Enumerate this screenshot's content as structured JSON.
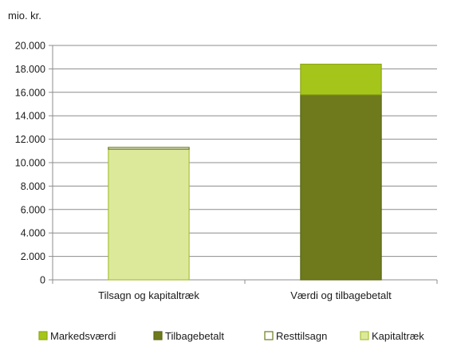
{
  "chart_data": {
    "type": "bar",
    "stacked": true,
    "unit_label": "mio. kr.",
    "categories": [
      "Tilsagn og kapitaltræk",
      "Værdi og tilbagebetalt"
    ],
    "series": [
      {
        "name": "Kapitaltræk",
        "values": [
          11150,
          0
        ],
        "color": "#dde99a",
        "stroke": "#a6c23a"
      },
      {
        "name": "Resttilsagn",
        "values": [
          150,
          0
        ],
        "color": "#ffffff",
        "stroke": "#6e7a1c"
      },
      {
        "name": "Tilbagebetalt",
        "values": [
          0,
          15800
        ],
        "color": "#6e7a1c",
        "stroke": "#5d6816"
      },
      {
        "name": "Markedsværdi",
        "values": [
          0,
          2600
        ],
        "color": "#a6c51a",
        "stroke": "#8ea816"
      }
    ],
    "ylim": [
      0,
      20000
    ],
    "yticks": [
      0,
      2000,
      4000,
      6000,
      8000,
      10000,
      12000,
      14000,
      16000,
      18000,
      20000
    ],
    "ytick_labels": [
      "0",
      "2.000",
      "4.000",
      "6.000",
      "8.000",
      "10.000",
      "12.000",
      "14.000",
      "16.000",
      "18.000",
      "20.000"
    ],
    "grid": true,
    "legend": {
      "placement": "bottom",
      "order": [
        "Markedsværdi",
        "Tilbagebetalt",
        "Resttilsagn",
        "Kapitaltræk"
      ]
    }
  }
}
